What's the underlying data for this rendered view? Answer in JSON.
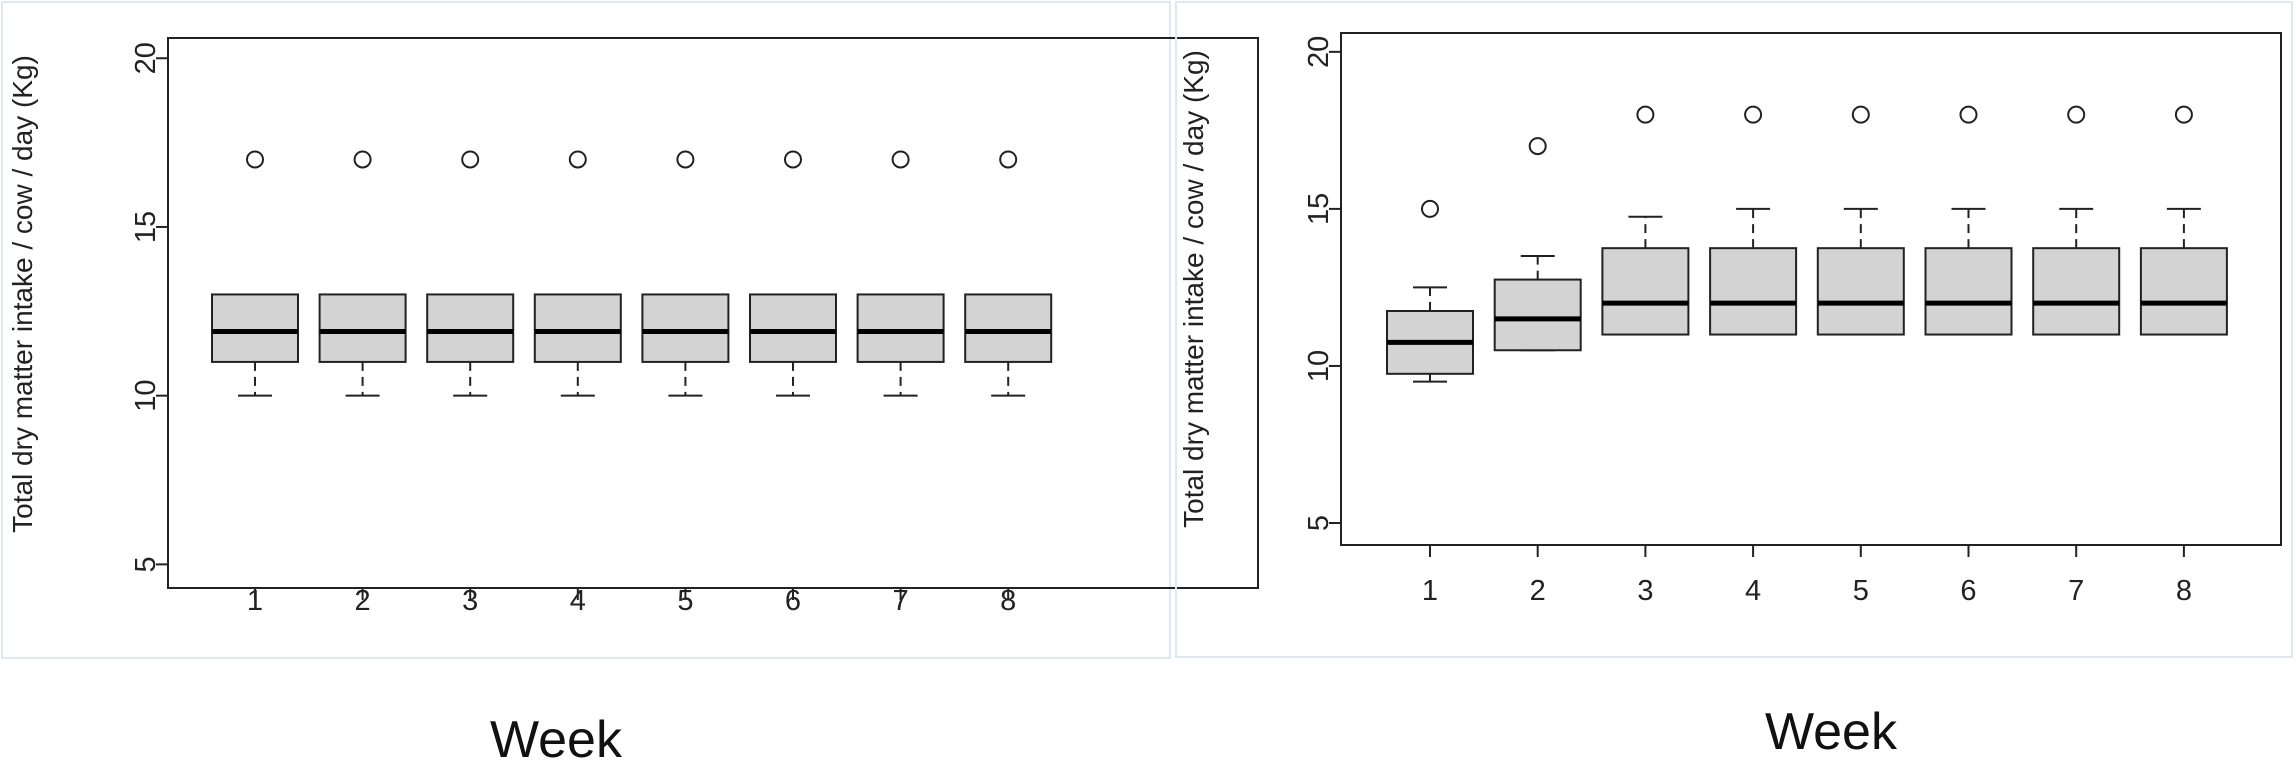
{
  "chart_data": [
    {
      "type": "boxplot",
      "title": "",
      "ylabel": "Total dry matter intake / cow / day (Kg)",
      "xlabel": "Week",
      "categories": [
        "1",
        "2",
        "3",
        "4",
        "5",
        "6",
        "7",
        "8"
      ],
      "ylim": [
        4.3,
        20.6
      ],
      "yticks": [
        5,
        10,
        15,
        20
      ],
      "box_fill": "#d3d3d3",
      "boxes": [
        {
          "min": 10,
          "q1": 11,
          "median": 11.9,
          "q3": 13,
          "max": 13,
          "outliers": [
            17
          ]
        },
        {
          "min": 10,
          "q1": 11,
          "median": 11.9,
          "q3": 13,
          "max": 13,
          "outliers": [
            17
          ]
        },
        {
          "min": 10,
          "q1": 11,
          "median": 11.9,
          "q3": 13,
          "max": 13,
          "outliers": [
            17
          ]
        },
        {
          "min": 10,
          "q1": 11,
          "median": 11.9,
          "q3": 13,
          "max": 13,
          "outliers": [
            17
          ]
        },
        {
          "min": 10,
          "q1": 11,
          "median": 11.9,
          "q3": 13,
          "max": 13,
          "outliers": [
            17
          ]
        },
        {
          "min": 10,
          "q1": 11,
          "median": 11.9,
          "q3": 13,
          "max": 13,
          "outliers": [
            17
          ]
        },
        {
          "min": 10,
          "q1": 11,
          "median": 11.9,
          "q3": 13,
          "max": 13,
          "outliers": [
            17
          ]
        },
        {
          "min": 10,
          "q1": 11,
          "median": 11.9,
          "q3": 13,
          "max": 13,
          "outliers": [
            17
          ]
        }
      ]
    },
    {
      "type": "boxplot",
      "title": "",
      "ylabel": "Total dry matter intake / cow / day (Kg)",
      "xlabel": "Week",
      "categories": [
        "1",
        "2",
        "3",
        "4",
        "5",
        "6",
        "7",
        "8"
      ],
      "ylim": [
        4.3,
        20.6
      ],
      "yticks": [
        5,
        10,
        15,
        20
      ],
      "box_fill": "#d3d3d3",
      "boxes": [
        {
          "min": 9.5,
          "q1": 9.75,
          "median": 10.75,
          "q3": 11.75,
          "max": 12.5,
          "outliers": [
            15
          ]
        },
        {
          "min": 10.5,
          "q1": 10.5,
          "median": 11.5,
          "q3": 12.75,
          "max": 13.5,
          "outliers": [
            17
          ]
        },
        {
          "min": 11,
          "q1": 11,
          "median": 12,
          "q3": 13.75,
          "max": 14.75,
          "outliers": [
            18
          ]
        },
        {
          "min": 11,
          "q1": 11,
          "median": 12,
          "q3": 13.75,
          "max": 15,
          "outliers": [
            18
          ]
        },
        {
          "min": 11,
          "q1": 11,
          "median": 12,
          "q3": 13.75,
          "max": 15,
          "outliers": [
            18
          ]
        },
        {
          "min": 11,
          "q1": 11,
          "median": 12,
          "q3": 13.75,
          "max": 15,
          "outliers": [
            18
          ]
        },
        {
          "min": 11,
          "q1": 11,
          "median": 12,
          "q3": 13.75,
          "max": 15,
          "outliers": [
            18
          ]
        },
        {
          "min": 11,
          "q1": 11,
          "median": 12,
          "q3": 13.75,
          "max": 15,
          "outliers": [
            18
          ]
        }
      ]
    }
  ]
}
